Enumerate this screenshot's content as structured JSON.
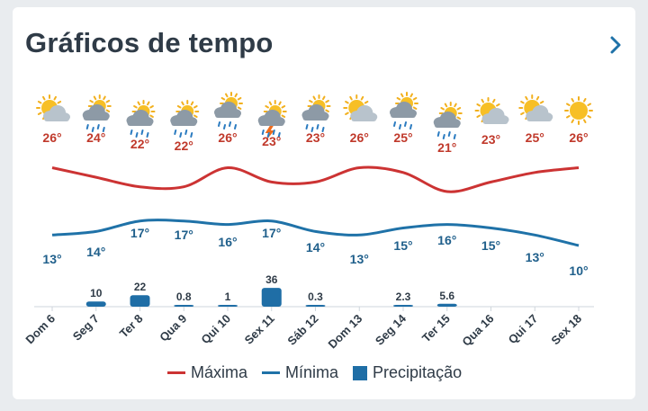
{
  "header": {
    "title": "Gráficos de tempo",
    "chevron_icon": "chevron-right-icon"
  },
  "colors": {
    "max": "#cc3333",
    "min": "#1f72a8",
    "precip": "#1f6ea6",
    "axis": "#cfd6dc",
    "text_dark": "#2f3b47",
    "max_text": "#c0392b",
    "min_text": "#1f5f8b"
  },
  "chart_data": {
    "type": "line",
    "categories": [
      "Dom 6",
      "Seg 7",
      "Ter 8",
      "Qua 9",
      "Qui 10",
      "Sex 11",
      "Sáb 12",
      "Dom 13",
      "Seg 14",
      "Ter 15",
      "Qua 16",
      "Qui 17",
      "Sex 18"
    ],
    "icons": [
      "partly-cloudy-icon",
      "sun-cloud-rain-icon",
      "sun-cloud-rain-icon",
      "sun-cloud-rain-icon",
      "sun-cloud-rain-icon",
      "sun-cloud-thunderstorm-icon",
      "sun-cloud-rain-icon",
      "partly-cloudy-icon",
      "sun-cloud-rain-icon",
      "sun-cloud-rain-icon",
      "partly-cloudy-icon",
      "partly-cloudy-icon",
      "sunny-icon"
    ],
    "series": [
      {
        "name": "Máxima",
        "type": "line",
        "values": [
          26,
          24,
          22,
          22,
          26,
          23,
          23,
          26,
          25,
          21,
          23,
          25,
          26
        ],
        "labels": [
          "26°",
          "24°",
          "22°",
          "22°",
          "26°",
          "23°",
          "23°",
          "26°",
          "25°",
          "21°",
          "23°",
          "25°",
          "26°"
        ]
      },
      {
        "name": "Mínima",
        "type": "line",
        "values": [
          13,
          14,
          17,
          17,
          16,
          17,
          14,
          13,
          15,
          16,
          15,
          13,
          10
        ],
        "labels": [
          "13°",
          "14°",
          "17°",
          "17°",
          "16°",
          "17°",
          "14°",
          "13°",
          "15°",
          "16°",
          "15°",
          "13°",
          "10°"
        ]
      },
      {
        "name": "Precipitação",
        "type": "bar",
        "values": [
          0,
          10,
          22,
          0.8,
          1,
          36,
          0.3,
          0,
          2.3,
          5.6,
          0,
          0,
          0
        ],
        "labels": [
          "",
          "10",
          "22",
          "0.8",
          "1",
          "36",
          "0.3",
          "",
          "2.3",
          "5.6",
          "",
          "",
          ""
        ]
      }
    ],
    "legend": [
      "Máxima",
      "Mínima",
      "Precipitação"
    ],
    "legend_position": "bottom"
  }
}
